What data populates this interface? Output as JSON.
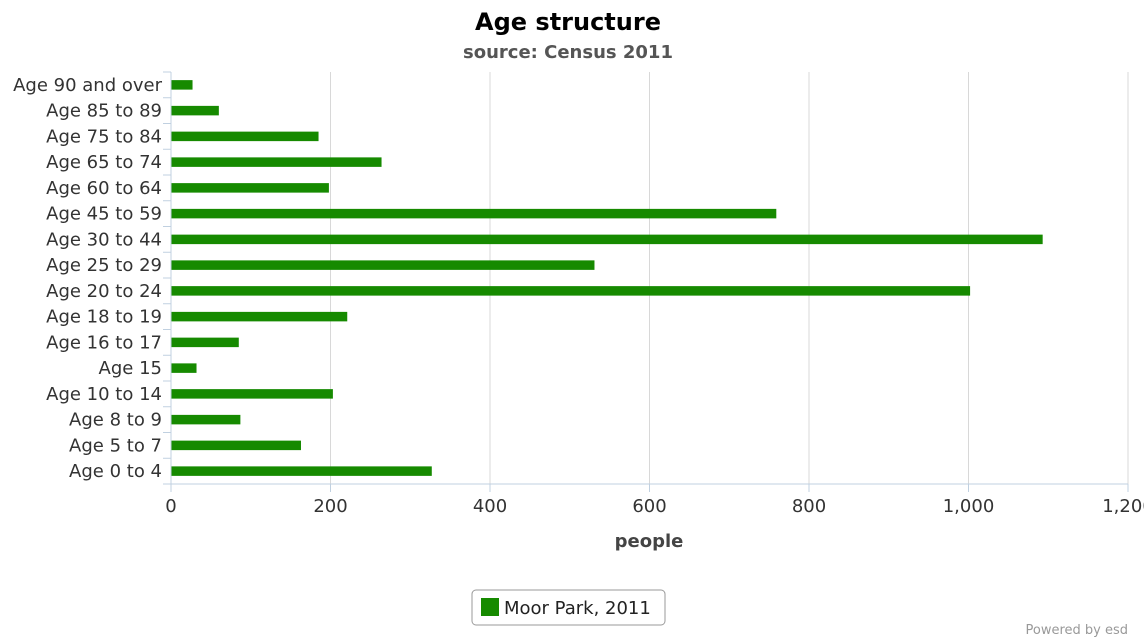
{
  "chart_data": {
    "type": "bar",
    "orientation": "horizontal",
    "title": "Age structure",
    "subtitle": "source: Census 2011",
    "xlabel": "people",
    "ylabel": "",
    "xlim": [
      0,
      1200
    ],
    "x_ticks": [
      0,
      200,
      400,
      600,
      800,
      1000,
      1200
    ],
    "x_tick_labels": [
      "0",
      "200",
      "400",
      "600",
      "800",
      "1,000",
      "1,200"
    ],
    "grid": true,
    "legend_position": "bottom-center",
    "categories": [
      "Age 90 and over",
      "Age 85 to 89",
      "Age 75 to 84",
      "Age 65 to 74",
      "Age 60 to 64",
      "Age 45 to 59",
      "Age 30 to 44",
      "Age 25 to 29",
      "Age 20 to 24",
      "Age 18 to 19",
      "Age 16 to 17",
      "Age 15",
      "Age 10 to 14",
      "Age 8 to 9",
      "Age 5 to 7",
      "Age 0 to 4"
    ],
    "series": [
      {
        "name": "Moor Park, 2011",
        "color": "#168a00",
        "values": [
          27,
          60,
          185,
          264,
          198,
          759,
          1093,
          531,
          1002,
          221,
          85,
          32,
          203,
          87,
          163,
          327
        ]
      }
    ]
  },
  "credit": "Powered by esd"
}
